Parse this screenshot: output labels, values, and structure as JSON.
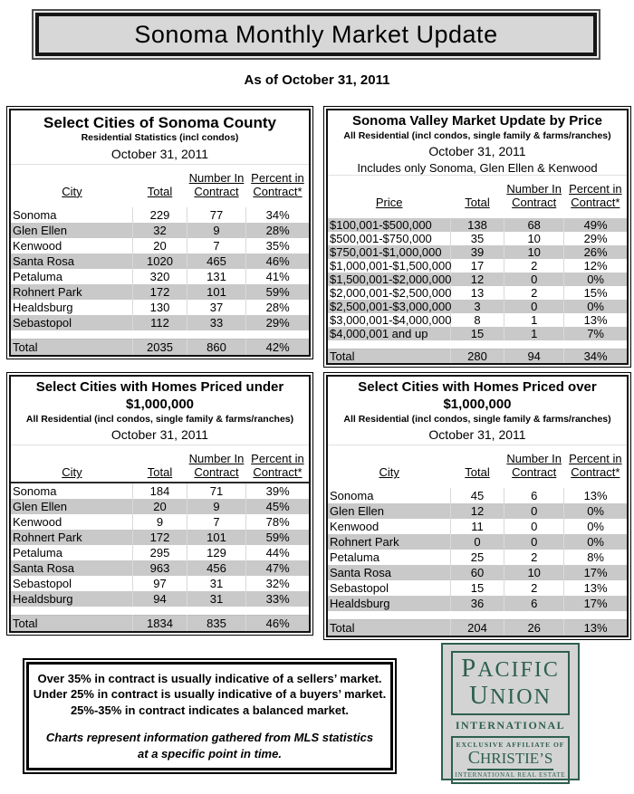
{
  "banner": {
    "title": "Sonoma Monthly Market Update"
  },
  "as_of": "As of October 31, 2011",
  "colors": {
    "logo_green": "#2d5f4e",
    "shaded_row": "#c9c9c9",
    "banner_fill": "#d7d7d7"
  },
  "tables": [
    {
      "title": "Select Cities of Sonoma County",
      "subtitle": "Residential Statistics (incl condos)",
      "date": "October 31, 2011",
      "includes": "",
      "headers": {
        "col1": "City",
        "col2": "Total",
        "col3a": "Number In",
        "col3b": "Contract",
        "col4a": "Percent in",
        "col4b": "Contract*"
      },
      "rows": [
        {
          "cells": [
            "Sonoma",
            "229",
            "77",
            "34%"
          ],
          "shaded": false
        },
        {
          "cells": [
            "Glen Ellen",
            "32",
            "9",
            "28%"
          ],
          "shaded": true
        },
        {
          "cells": [
            "Kenwood",
            "20",
            "7",
            "35%"
          ],
          "shaded": false
        },
        {
          "cells": [
            "Santa Rosa",
            "1020",
            "465",
            "46%"
          ],
          "shaded": true
        },
        {
          "cells": [
            "Petaluma",
            "320",
            "131",
            "41%"
          ],
          "shaded": false
        },
        {
          "cells": [
            "Rohnert Park",
            "172",
            "101",
            "59%"
          ],
          "shaded": true
        },
        {
          "cells": [
            "Healdsburg",
            "130",
            "37",
            "28%"
          ],
          "shaded": false
        },
        {
          "cells": [
            "Sebastopol",
            "112",
            "33",
            "29%"
          ],
          "shaded": true
        }
      ],
      "total_row": [
        "Total",
        "2035",
        "860",
        "42%"
      ]
    },
    {
      "title": "Sonoma Valley Market Update by Price",
      "subtitle": "All Residential (incl condos, single family & farms/ranches)",
      "date": "October 31, 2011",
      "includes": "Includes only Sonoma, Glen Ellen & Kenwood",
      "headers": {
        "col1": "Price",
        "col2": "Total",
        "col3a": "Number In",
        "col3b": "Contract",
        "col4a": "Percent in",
        "col4b": "Contract*"
      },
      "rows": [
        {
          "cells": [
            "$100,001-$500,000",
            "138",
            "68",
            "49%"
          ],
          "shaded": true
        },
        {
          "cells": [
            "$500,001-$750,000",
            "35",
            "10",
            "29%"
          ],
          "shaded": false
        },
        {
          "cells": [
            "$750,001-$1,000,000",
            "39",
            "10",
            "26%"
          ],
          "shaded": true
        },
        {
          "cells": [
            "$1,000,001-$1,500,000",
            "17",
            "2",
            "12%"
          ],
          "shaded": false
        },
        {
          "cells": [
            "$1,500,001-$2,000,000",
            "12",
            "0",
            "0%"
          ],
          "shaded": true
        },
        {
          "cells": [
            "$2,000,001-$2,500,000",
            "13",
            "2",
            "15%"
          ],
          "shaded": false
        },
        {
          "cells": [
            "$2,500,001-$3,000,000",
            "3",
            "0",
            "0%"
          ],
          "shaded": true
        },
        {
          "cells": [
            "$3,000,001-$4,000,000",
            "8",
            "1",
            "13%"
          ],
          "shaded": false
        },
        {
          "cells": [
            "$4,000,001 and up",
            "15",
            "1",
            "7%"
          ],
          "shaded": true
        }
      ],
      "total_row": [
        "Total",
        "280",
        "94",
        "34%"
      ]
    },
    {
      "title": "Select Cities with Homes Priced under $1,000,000",
      "subtitle": "All Residential (incl condos, single family & farms/ranches)",
      "date": "October 31, 2011",
      "includes": "",
      "headers": {
        "col1": "City",
        "col2": "Total",
        "col3a": "Number In",
        "col3b": "Contract",
        "col4a": "Percent in",
        "col4b": "Contract*"
      },
      "rows": [
        {
          "cells": [
            "Sonoma",
            "184",
            "71",
            "39%"
          ],
          "shaded": false
        },
        {
          "cells": [
            "Glen Ellen",
            "20",
            "9",
            "45%"
          ],
          "shaded": true
        },
        {
          "cells": [
            "Kenwood",
            "9",
            "7",
            "78%"
          ],
          "shaded": false
        },
        {
          "cells": [
            "Rohnert Park",
            "172",
            "101",
            "59%"
          ],
          "shaded": true
        },
        {
          "cells": [
            "Petaluma",
            "295",
            "129",
            "44%"
          ],
          "shaded": false
        },
        {
          "cells": [
            "Santa Rosa",
            "963",
            "456",
            "47%"
          ],
          "shaded": true
        },
        {
          "cells": [
            "Sebastopol",
            "97",
            "31",
            "32%"
          ],
          "shaded": false
        },
        {
          "cells": [
            "Healdsburg",
            "94",
            "31",
            "33%"
          ],
          "shaded": true
        }
      ],
      "total_row": [
        "Total",
        "1834",
        "835",
        "46%"
      ]
    },
    {
      "title": "Select Cities with Homes Priced over $1,000,000",
      "subtitle": "All Residential (incl condos, single family & farms/ranches)",
      "date": "October 31, 2011",
      "includes": "",
      "headers": {
        "col1": "City",
        "col2": "Total",
        "col3a": "Number In",
        "col3b": "Contract",
        "col4a": "Percent in",
        "col4b": "Contract*"
      },
      "rows": [
        {
          "cells": [
            "Sonoma",
            "45",
            "6",
            "13%"
          ],
          "shaded": false
        },
        {
          "cells": [
            "Glen Ellen",
            "12",
            "0",
            "0%"
          ],
          "shaded": true
        },
        {
          "cells": [
            "Kenwood",
            "11",
            "0",
            "0%"
          ],
          "shaded": false
        },
        {
          "cells": [
            "Rohnert Park",
            "0",
            "0",
            "0%"
          ],
          "shaded": true
        },
        {
          "cells": [
            "Petaluma",
            "25",
            "2",
            "8%"
          ],
          "shaded": false
        },
        {
          "cells": [
            "Santa Rosa",
            "60",
            "10",
            "17%"
          ],
          "shaded": true
        },
        {
          "cells": [
            "Sebastopol",
            "15",
            "2",
            "13%"
          ],
          "shaded": false
        },
        {
          "cells": [
            "Healdsburg",
            "36",
            "6",
            "17%"
          ],
          "shaded": true
        }
      ],
      "total_row": [
        "Total",
        "204",
        "26",
        "13%"
      ]
    }
  ],
  "note": {
    "lines": [
      "Over 35% in contract is usually indicative of a sellers’ market.",
      "Under 25% in contract is usually indicative of a buyers’ market.",
      "25%-35% in contract indicates a balanced market."
    ],
    "italic_lines": [
      "Charts represent information gathered from MLS statistics",
      "at a specific point in time."
    ]
  },
  "logo": {
    "word1": "PACIFIC",
    "word2": "UNION",
    "line2": "INTERNATIONAL",
    "affiliate": "EXCLUSIVE AFFILIATE OF",
    "brand": "CHRISTIE’S",
    "tagline": "INTERNATIONAL REAL ESTATE"
  }
}
